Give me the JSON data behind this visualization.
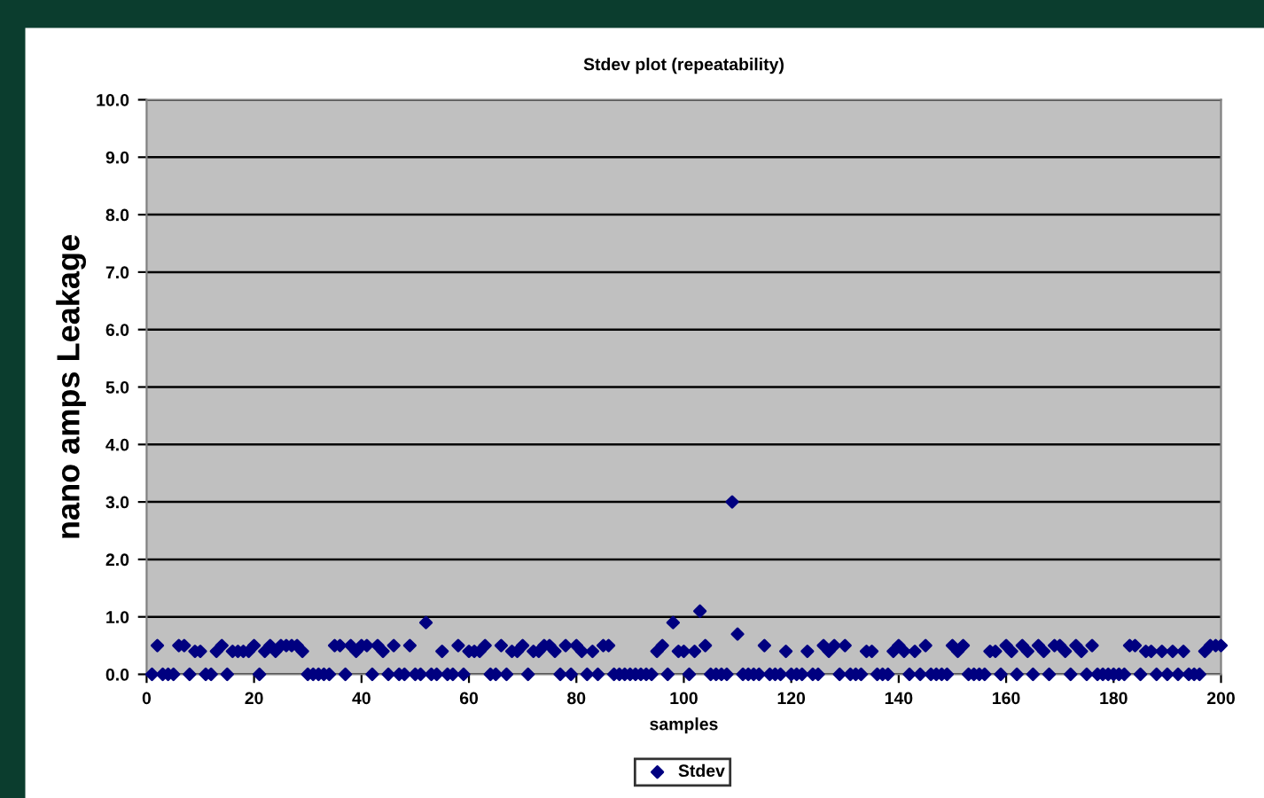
{
  "chart_data": {
    "type": "scatter",
    "title": "Stdev plot (repeatability)",
    "xlabel": "samples",
    "ylabel": "nano amps Leakage",
    "x": [
      1,
      2,
      3,
      4,
      5,
      6,
      7,
      8,
      9,
      10,
      11,
      12,
      13,
      14,
      15,
      16,
      17,
      18,
      19,
      20,
      21,
      22,
      23,
      24,
      25,
      26,
      27,
      28,
      29,
      30,
      31,
      32,
      33,
      34,
      35,
      36,
      37,
      38,
      39,
      40,
      41,
      42,
      43,
      44,
      45,
      46,
      47,
      48,
      49,
      50,
      51,
      52,
      53,
      54,
      55,
      56,
      57,
      58,
      59,
      60,
      61,
      62,
      63,
      64,
      65,
      66,
      67,
      68,
      69,
      70,
      71,
      72,
      73,
      74,
      75,
      76,
      77,
      78,
      79,
      80,
      81,
      82,
      83,
      84,
      85,
      86,
      87,
      88,
      89,
      90,
      91,
      92,
      93,
      94,
      95,
      96,
      97,
      98,
      99,
      100,
      101,
      102,
      103,
      104,
      105,
      106,
      107,
      108,
      109,
      110,
      111,
      112,
      113,
      114,
      115,
      116,
      117,
      118,
      119,
      120,
      121,
      122,
      123,
      124,
      125,
      126,
      127,
      128,
      129,
      130,
      131,
      132,
      133,
      134,
      135,
      136,
      137,
      138,
      139,
      140,
      141,
      142,
      143,
      144,
      145,
      146,
      147,
      148,
      149,
      150,
      151,
      152,
      153,
      154,
      155,
      156,
      157,
      158,
      159,
      160,
      161,
      162,
      163,
      164,
      165,
      166,
      167,
      168,
      169,
      170,
      171,
      172,
      173,
      174,
      175,
      176,
      177,
      178,
      179,
      180,
      181,
      182,
      183,
      184,
      185,
      186,
      187,
      188,
      189,
      190,
      191,
      192,
      193,
      194,
      195,
      196,
      197,
      198,
      199,
      200
    ],
    "series": [
      {
        "name": "Stdev",
        "color": "#000080",
        "values": [
          0,
          0.5,
          0,
          0,
          0,
          0.5,
          0.5,
          0,
          0.4,
          0.4,
          0,
          0,
          0.4,
          0.5,
          0,
          0.4,
          0.4,
          0.4,
          0.4,
          0.5,
          0,
          0.4,
          0.5,
          0.4,
          0.5,
          0.5,
          0.5,
          0.5,
          0.4,
          0,
          0,
          0,
          0,
          0,
          0.5,
          0.5,
          0,
          0.5,
          0.4,
          0.5,
          0.5,
          0,
          0.5,
          0.4,
          0,
          0.5,
          0,
          0,
          0.5,
          0,
          0,
          0.9,
          0,
          0,
          0.4,
          0,
          0,
          0.5,
          0,
          0.4,
          0.4,
          0.4,
          0.5,
          0,
          0,
          0.5,
          0,
          0.4,
          0.4,
          0.5,
          0,
          0.4,
          0.4,
          0.5,
          0.5,
          0.4,
          0,
          0.5,
          0,
          0.5,
          0.4,
          0,
          0.4,
          0,
          0.5,
          0.5,
          0,
          0,
          0,
          0,
          0,
          0,
          0,
          0,
          0.4,
          0.5,
          0,
          0.9,
          0.4,
          0.4,
          0,
          0.4,
          1.1,
          0.5,
          0,
          0,
          0,
          0,
          3.0,
          0.7,
          0,
          0,
          0,
          0,
          0.5,
          0,
          0,
          0,
          0.4,
          0,
          0,
          0,
          0.4,
          0,
          0,
          0.5,
          0.4,
          0.5,
          0,
          0.5,
          0,
          0,
          0,
          0.4,
          0.4,
          0,
          0,
          0,
          0.4,
          0.5,
          0.4,
          0,
          0.4,
          0,
          0.5,
          0,
          0,
          0,
          0,
          0.5,
          0.4,
          0.5,
          0,
          0,
          0,
          0,
          0.4,
          0.4,
          0,
          0.5,
          0.4,
          0,
          0.5,
          0.4,
          0,
          0.5,
          0.4,
          0,
          0.5,
          0.5,
          0.4,
          0,
          0.5,
          0.4,
          0,
          0.5,
          0,
          0,
          0,
          0,
          0,
          0,
          0.5,
          0.5,
          0,
          0.4,
          0.4,
          0,
          0.4,
          0,
          0.4,
          0,
          0.4,
          0,
          0,
          0,
          0.4,
          0.5,
          0.5,
          0.5
        ]
      }
    ],
    "xlim": [
      0,
      200
    ],
    "xticks": [
      0,
      20,
      40,
      60,
      80,
      100,
      120,
      140,
      160,
      180,
      200
    ],
    "ylim": [
      0,
      10
    ],
    "yticks": [
      {
        "value": 0,
        "label": "0.0"
      },
      {
        "value": 1,
        "label": "1.0"
      },
      {
        "value": 2,
        "label": "2.0"
      },
      {
        "value": 3,
        "label": "3.0"
      },
      {
        "value": 4,
        "label": "4.0"
      },
      {
        "value": 5,
        "label": "5.0"
      },
      {
        "value": 6,
        "label": "6.0"
      },
      {
        "value": 7,
        "label": "7.0"
      },
      {
        "value": 8,
        "label": "8.0"
      },
      {
        "value": 9,
        "label": "9.0"
      },
      {
        "value": 10,
        "label": "10.0"
      }
    ],
    "grid": "y",
    "legend": "bottom",
    "marker": "diamond"
  }
}
